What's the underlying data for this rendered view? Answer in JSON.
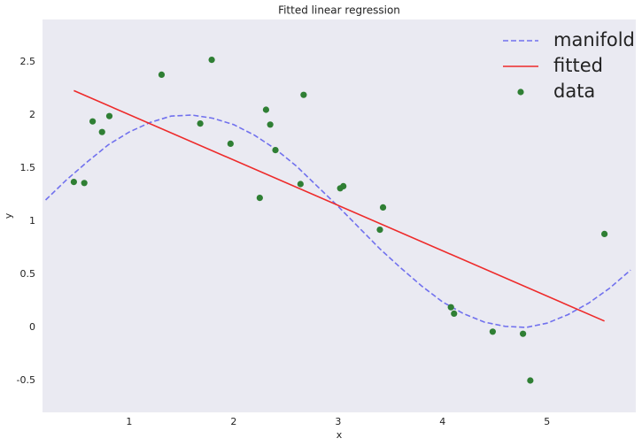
{
  "chart_data": {
    "type": "line",
    "title": "Fitted linear regression",
    "xlabel": "x",
    "ylabel": "y",
    "xlim": [
      0.17,
      5.85
    ],
    "ylim": [
      -0.8,
      2.9
    ],
    "xticks": [
      1,
      2,
      3,
      4,
      5
    ],
    "yticks": [
      -0.5,
      0.0,
      0.5,
      1.0,
      1.5,
      2.0,
      2.5
    ],
    "grid": false,
    "legend": "upper right",
    "series": [
      {
        "name": "manifold",
        "type": "line",
        "linestyle": "dashed",
        "color": "#7171ee",
        "x": [
          0.2,
          0.4,
          0.6,
          0.8,
          1.0,
          1.2,
          1.4,
          1.6,
          1.8,
          2.0,
          2.2,
          2.4,
          2.6,
          2.8,
          3.0,
          3.2,
          3.4,
          3.6,
          3.8,
          4.0,
          4.2,
          4.4,
          4.6,
          4.8,
          5.0,
          5.2,
          5.4,
          5.6,
          5.8
        ],
        "values": [
          1.2,
          1.39,
          1.56,
          1.72,
          1.84,
          1.93,
          1.99,
          2.0,
          1.97,
          1.91,
          1.81,
          1.68,
          1.52,
          1.33,
          1.14,
          0.94,
          0.74,
          0.56,
          0.39,
          0.24,
          0.13,
          0.05,
          0.01,
          0.0,
          0.04,
          0.12,
          0.23,
          0.37,
          0.54
        ]
      },
      {
        "name": "fitted",
        "type": "line",
        "linestyle": "solid",
        "color": "#ee2b2b",
        "x": [
          0.47,
          5.55
        ],
        "values": [
          2.23,
          0.06
        ]
      },
      {
        "name": "data",
        "type": "scatter",
        "color": "#2f7f34",
        "x": [
          0.47,
          0.57,
          0.65,
          0.74,
          0.81,
          1.31,
          1.68,
          1.79,
          1.97,
          2.25,
          2.31,
          2.35,
          2.4,
          2.64,
          2.67,
          3.02,
          3.05,
          3.4,
          3.43,
          4.08,
          4.11,
          4.48,
          4.77,
          4.84,
          5.55
        ],
        "values": [
          1.37,
          1.36,
          1.94,
          1.84,
          1.99,
          2.38,
          1.92,
          2.52,
          1.73,
          1.22,
          2.05,
          1.91,
          1.67,
          1.35,
          2.19,
          1.31,
          1.33,
          0.92,
          1.13,
          0.19,
          0.13,
          -0.04,
          -0.06,
          -0.5,
          0.88
        ]
      }
    ]
  }
}
